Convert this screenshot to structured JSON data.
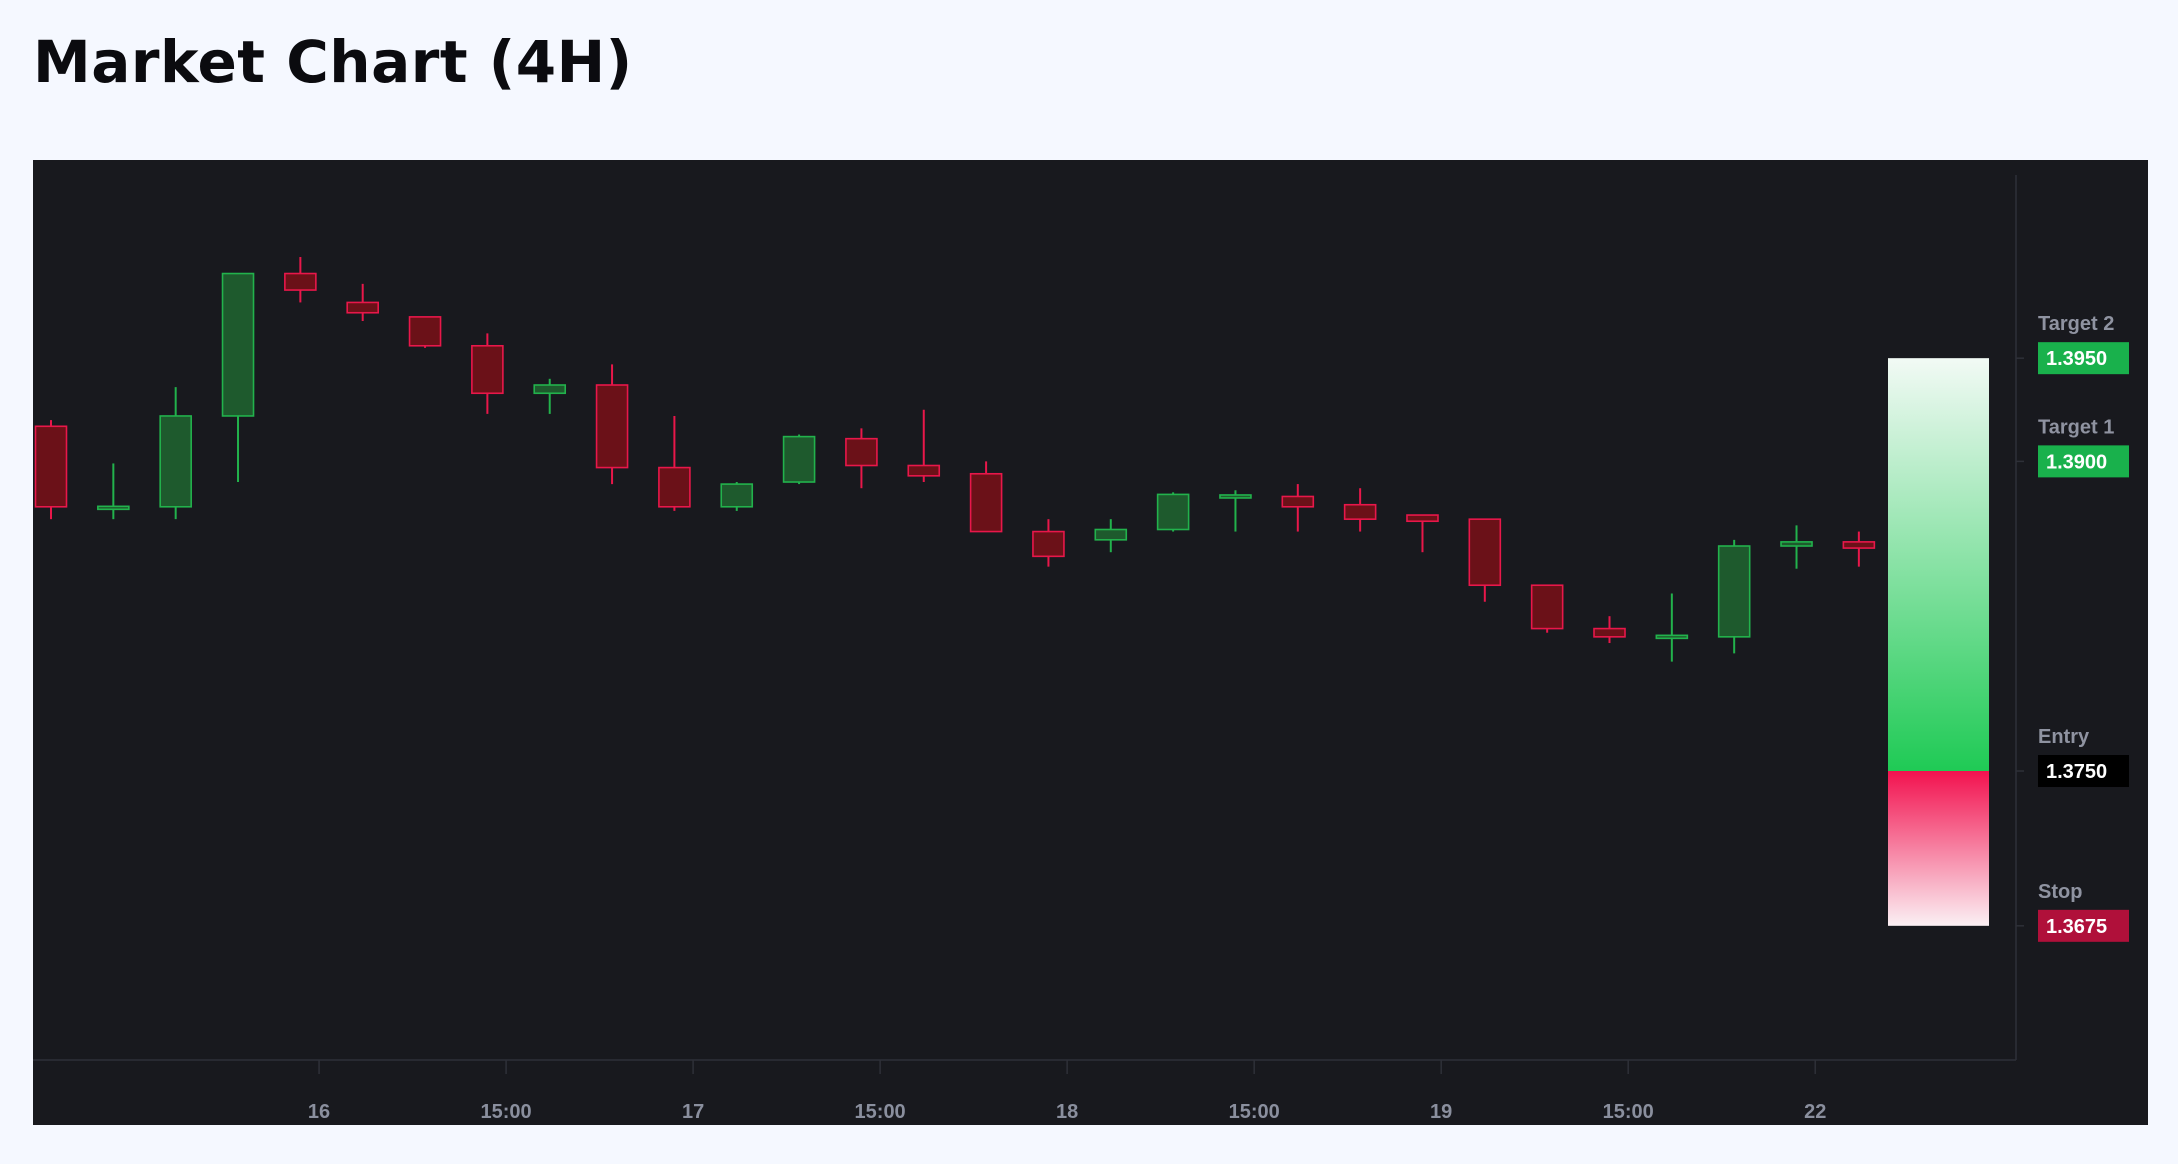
{
  "page": {
    "title": "Market Chart (4H)"
  },
  "chart_data": {
    "type": "candlestick",
    "title": "Market Chart (4H)",
    "ylim": [
      1.361,
      1.4046
    ],
    "x_ticks": [
      {
        "index": 4.3,
        "label": "16"
      },
      {
        "index": 7.3,
        "label": "15:00"
      },
      {
        "index": 10.3,
        "label": "17"
      },
      {
        "index": 13.3,
        "label": "15:00"
      },
      {
        "index": 16.3,
        "label": "18"
      },
      {
        "index": 19.3,
        "label": "15:00"
      },
      {
        "index": 22.3,
        "label": "19"
      },
      {
        "index": 25.3,
        "label": "15:00"
      },
      {
        "index": 28.3,
        "label": "22"
      }
    ],
    "candles": [
      {
        "o": 1.3917,
        "h": 1.392,
        "l": 1.3872,
        "c": 1.3878
      },
      {
        "o": 1.3877,
        "h": 1.3899,
        "l": 1.3872,
        "c": 1.3878
      },
      {
        "o": 1.3878,
        "h": 1.3936,
        "l": 1.3872,
        "c": 1.3922
      },
      {
        "o": 1.3922,
        "h": 1.3991,
        "l": 1.389,
        "c": 1.3991
      },
      {
        "o": 1.3991,
        "h": 1.3999,
        "l": 1.3977,
        "c": 1.3983
      },
      {
        "o": 1.3977,
        "h": 1.3986,
        "l": 1.3968,
        "c": 1.3972
      },
      {
        "o": 1.397,
        "h": 1.397,
        "l": 1.3955,
        "c": 1.3956
      },
      {
        "o": 1.3956,
        "h": 1.3962,
        "l": 1.3923,
        "c": 1.3933
      },
      {
        "o": 1.3933,
        "h": 1.394,
        "l": 1.3923,
        "c": 1.3937
      },
      {
        "o": 1.3937,
        "h": 1.3947,
        "l": 1.3889,
        "c": 1.3897
      },
      {
        "o": 1.3897,
        "h": 1.3922,
        "l": 1.3876,
        "c": 1.3878
      },
      {
        "o": 1.3878,
        "h": 1.389,
        "l": 1.3876,
        "c": 1.3889
      },
      {
        "o": 1.389,
        "h": 1.3913,
        "l": 1.3889,
        "c": 1.3912
      },
      {
        "o": 1.3911,
        "h": 1.3916,
        "l": 1.3887,
        "c": 1.3898
      },
      {
        "o": 1.3898,
        "h": 1.3925,
        "l": 1.389,
        "c": 1.3893
      },
      {
        "o": 1.3894,
        "h": 1.39,
        "l": 1.3866,
        "c": 1.3866
      },
      {
        "o": 1.3866,
        "h": 1.3872,
        "l": 1.3849,
        "c": 1.3854
      },
      {
        "o": 1.3862,
        "h": 1.3872,
        "l": 1.3856,
        "c": 1.3867
      },
      {
        "o": 1.3867,
        "h": 1.3885,
        "l": 1.3866,
        "c": 1.3884
      },
      {
        "o": 1.3883,
        "h": 1.3886,
        "l": 1.3866,
        "c": 1.3883
      },
      {
        "o": 1.3883,
        "h": 1.3889,
        "l": 1.3866,
        "c": 1.3878
      },
      {
        "o": 1.3879,
        "h": 1.3887,
        "l": 1.3866,
        "c": 1.3872
      },
      {
        "o": 1.3874,
        "h": 1.3874,
        "l": 1.3856,
        "c": 1.3871
      },
      {
        "o": 1.3872,
        "h": 1.3872,
        "l": 1.3832,
        "c": 1.384
      },
      {
        "o": 1.384,
        "h": 1.384,
        "l": 1.3817,
        "c": 1.3819
      },
      {
        "o": 1.3819,
        "h": 1.3825,
        "l": 1.3812,
        "c": 1.3815
      },
      {
        "o": 1.3815,
        "h": 1.3836,
        "l": 1.3803,
        "c": 1.3815
      },
      {
        "o": 1.3815,
        "h": 1.3862,
        "l": 1.3807,
        "c": 1.3859
      },
      {
        "o": 1.3859,
        "h": 1.3869,
        "l": 1.3848,
        "c": 1.3861
      },
      {
        "o": 1.3861,
        "h": 1.3866,
        "l": 1.3849,
        "c": 1.3858
      }
    ],
    "position": {
      "entry": 1.375,
      "target": 1.395,
      "stop": 1.3675
    },
    "levels": [
      {
        "name": "Target 2",
        "price": "1.3950",
        "value": 1.395,
        "color": "#19b14c"
      },
      {
        "name": "Target 1",
        "price": "1.3900",
        "value": 1.39,
        "color": "#19b14c"
      },
      {
        "name": "Entry",
        "price": "1.3750",
        "value": 1.375,
        "color": "#000000"
      },
      {
        "name": "Stop",
        "price": "1.3675",
        "value": 1.3675,
        "color": "#b0103a"
      }
    ],
    "colors": {
      "background": "#18191e",
      "up_fill": "#1e5a2d",
      "up_stroke": "#22b24c",
      "down_fill": "#6b1118",
      "down_stroke": "#e8174a",
      "axis_line": "#2e3038",
      "profit_top": "#f2faf5",
      "profit_bottom": "#1fca55",
      "loss_top": "#f2124f",
      "loss_bottom": "#fbf0f4"
    }
  }
}
